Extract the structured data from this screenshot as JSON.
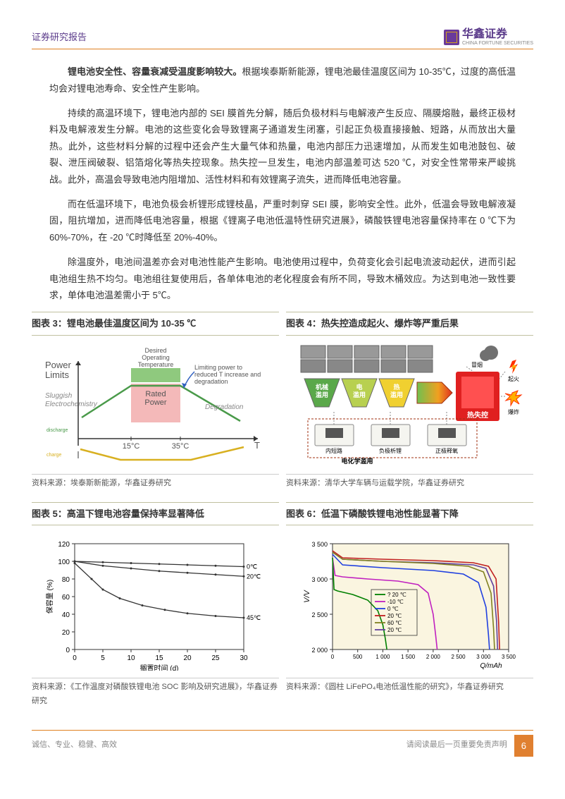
{
  "header": {
    "title": "证券研究报告",
    "logo_text": "华鑫证券",
    "logo_sub": "CHINA FORTUNE SECURITIES"
  },
  "paragraphs": {
    "p1_bold": "锂电池安全性、容量衰减受温度影响较大。",
    "p1": "根据埃泰斯新能源，锂电池最佳温度区间为 10-35℃，过度的高低温均会对锂电池寿命、安全性产生影响。",
    "p2": "持续的高温环境下，锂电池内部的 SEI 膜首先分解，随后负极材料与电解液产生反应、隔膜熔融，最终正极材料及电解液发生分解。电池的这些变化会导致锂离子通道发生闭塞，引起正负极直接接触、短路，从而放出大量热。此外，这些材料分解的过程中还会产生大量气体和热量，电池内部压力迅速增加，从而发生如电池鼓包、破裂、泄压阀破裂、铝箔熔化等热失控现象。热失控一旦发生，电池内部温差可达 520 ℃，对安全性常带来严峻挑战。此外，高温会导致电池内阻增加、活性材料和有效锂离子流失，进而降低电池容量。",
    "p3": "而在低温环境下，电池负极会析锂形成锂枝晶，严重时刺穿 SEI 膜，影响安全性。此外，低温会导致电解液凝固，阻抗增加，进而降低电池容量，根据《锂离子电池低温特性研究进展》，磷酸铁锂电池容量保持率在 0 ℃下为 60%-70%，在 -20 ℃时降低至 20%-40%。",
    "p4": "除温度外，电池间温差亦会对电池性能产生影响。电池使用过程中，负荷变化会引起电流波动起伏，进而引起电池组生热不均匀。电池组往复使用后，各单体电池的老化程度会有所不同，导致木桶效应。为达到电池一致性要求，单体电池温差需小于 5℃。"
  },
  "figures": {
    "fig3": {
      "title": "图表 3：锂电池最佳温度区间为 10-35 ℃",
      "source": "资料来源：埃泰斯新能源，华鑫证券研究",
      "labels": {
        "power_limits": "Power\nLimits",
        "desired": "Desired\nOperating\nTemperature",
        "limiting": "Limiting power to\nreduced T increase and\ndegradation",
        "sluggish": "Sluggish\nElectrochemistry",
        "rated": "Rated\nPower",
        "degradation": "Degradation",
        "discharge": "discharge",
        "charge": "charge",
        "t15": "15°C",
        "t35": "35°C",
        "T": "T"
      },
      "colors": {
        "green_band": "#8fc97e",
        "pink_band": "#f4b9b9",
        "blue_arrow": "#3060c0",
        "green_line": "#4a9a4a",
        "yellow_line": "#d8b020",
        "axis": "#333"
      }
    },
    "fig4": {
      "title": "图表 4：热失控造成起火、爆炸等严重后果",
      "source": "资料来源：清华大学车辆与运载学院，华鑫证券研究",
      "labels": {
        "mech": "机械\n滥用",
        "elec": "电\n滥用",
        "heat": "热\n滥用",
        "runaway": "热失控",
        "smoke": "冒烟",
        "fire": "起火",
        "explode": "爆炸",
        "short": "内短路",
        "anode": "负极析锂",
        "cathode": "正极释氧",
        "echem": "电化学滥用"
      },
      "colors": {
        "mech": "#5aa84a",
        "elec": "#b8d050",
        "heat": "#f0d030",
        "runaway_bg": "#e02020",
        "runaway_inner": "#ff5050",
        "arrow_grad1": "#70c050",
        "arrow_grad2": "#f0a020",
        "arrow_grad3": "#e03020",
        "box_border": "#888",
        "smoke": "#707070",
        "fire1": "#ff3000",
        "fire2": "#ffb000"
      }
    },
    "fig5": {
      "title": "图表 5：高温下锂电池容量保持率显著降低",
      "source": "资料来源：《工作温度对磷酸铁锂电池 SOC 影响及研究进展》，华鑫证券研究",
      "ylabel": "保容量 (%)",
      "xlabel": "搁置时间 (d)",
      "xlim": [
        0,
        30
      ],
      "xtick": 5,
      "ylim": [
        0,
        120
      ],
      "ytick": 20,
      "series": [
        {
          "label": "0℃",
          "points": [
            [
              0,
              100
            ],
            [
              5,
              99
            ],
            [
              10,
              98
            ],
            [
              15,
              97
            ],
            [
              20,
              96
            ],
            [
              25,
              95
            ],
            [
              30,
              94
            ]
          ]
        },
        {
          "label": "20℃",
          "points": [
            [
              0,
              100
            ],
            [
              5,
              95
            ],
            [
              10,
              92
            ],
            [
              15,
              89
            ],
            [
              20,
              87
            ],
            [
              25,
              85
            ],
            [
              30,
              83
            ]
          ]
        },
        {
          "label": "45℃",
          "points": [
            [
              0,
              98
            ],
            [
              3,
              80
            ],
            [
              5,
              68
            ],
            [
              8,
              58
            ],
            [
              12,
              50
            ],
            [
              16,
              45
            ],
            [
              20,
              41
            ],
            [
              25,
              38
            ],
            [
              30,
              36
            ]
          ]
        }
      ],
      "line_color": "#333",
      "grid_color": "#ccc"
    },
    "fig6": {
      "title": "图表 6：低温下磷酸铁锂电池性能显著下降",
      "source": "资料来源：《圆柱 LiFePO₄电池低温性能的研究》，华鑫证券研究",
      "ylabel": "V/V",
      "xlabel": "Q/mAh",
      "yticks": [
        "3 500",
        "3 000",
        "2 500",
        "2 000"
      ],
      "xticks": [
        "0",
        "500",
        "1 000",
        "1 500",
        "2 000",
        "2 500",
        "3 000",
        "3 500"
      ],
      "bg": "#faf5e0",
      "legend": [
        {
          "label": "? 20 ℃",
          "color": "#008000"
        },
        {
          "label": "-10 ℃",
          "color": "#c020c0"
        },
        {
          "label": "0 ℃",
          "color": "#2040e0"
        },
        {
          "label": "20 ℃",
          "color": "#c02020"
        },
        {
          "label": "60 ℃",
          "color": "#808020"
        },
        {
          "label": "20 ℃",
          "color": "#6040a0"
        }
      ],
      "series": [
        {
          "color": "#c02020",
          "points": [
            [
              0,
              3400
            ],
            [
              200,
              3300
            ],
            [
              1000,
              3280
            ],
            [
              2000,
              3260
            ],
            [
              2800,
              3230
            ],
            [
              3100,
              3180
            ],
            [
              3250,
              3000
            ],
            [
              3300,
              2400
            ],
            [
              3320,
              2000
            ]
          ]
        },
        {
          "color": "#6040a0",
          "points": [
            [
              0,
              3380
            ],
            [
              200,
              3280
            ],
            [
              1000,
              3250
            ],
            [
              2000,
              3230
            ],
            [
              2800,
              3200
            ],
            [
              3050,
              3150
            ],
            [
              3200,
              2900
            ],
            [
              3260,
              2400
            ],
            [
              3280,
              2000
            ]
          ]
        },
        {
          "color": "#808020",
          "points": [
            [
              0,
              3380
            ],
            [
              200,
              3280
            ],
            [
              1000,
              3250
            ],
            [
              2000,
              3220
            ],
            [
              2700,
              3180
            ],
            [
              3000,
              3100
            ],
            [
              3150,
              2800
            ],
            [
              3200,
              2300
            ],
            [
              3220,
              2000
            ]
          ]
        },
        {
          "color": "#2040e0",
          "points": [
            [
              0,
              3350
            ],
            [
              200,
              3200
            ],
            [
              1000,
              3160
            ],
            [
              2000,
              3120
            ],
            [
              2600,
              3070
            ],
            [
              2900,
              2950
            ],
            [
              3050,
              2600
            ],
            [
              3100,
              2200
            ],
            [
              3120,
              2000
            ]
          ]
        },
        {
          "color": "#c020c0",
          "points": [
            [
              0,
              3300
            ],
            [
              50,
              3050
            ],
            [
              200,
              3030
            ],
            [
              700,
              3000
            ],
            [
              1300,
              2970
            ],
            [
              1700,
              2920
            ],
            [
              1900,
              2800
            ],
            [
              2000,
              2500
            ],
            [
              2050,
              2200
            ],
            [
              2080,
              2000
            ]
          ]
        },
        {
          "color": "#008000",
          "points": [
            [
              0,
              3300
            ],
            [
              30,
              2850
            ],
            [
              100,
              2830
            ],
            [
              400,
              2780
            ],
            [
              700,
              2700
            ],
            [
              900,
              2550
            ],
            [
              1000,
              2350
            ],
            [
              1050,
              2150
            ],
            [
              1080,
              2000
            ]
          ]
        }
      ]
    }
  },
  "footer": {
    "motto": "诚信、专业、稳健、高效",
    "disclaimer": "请阅读最后一页重要免责声明",
    "page": "6"
  }
}
